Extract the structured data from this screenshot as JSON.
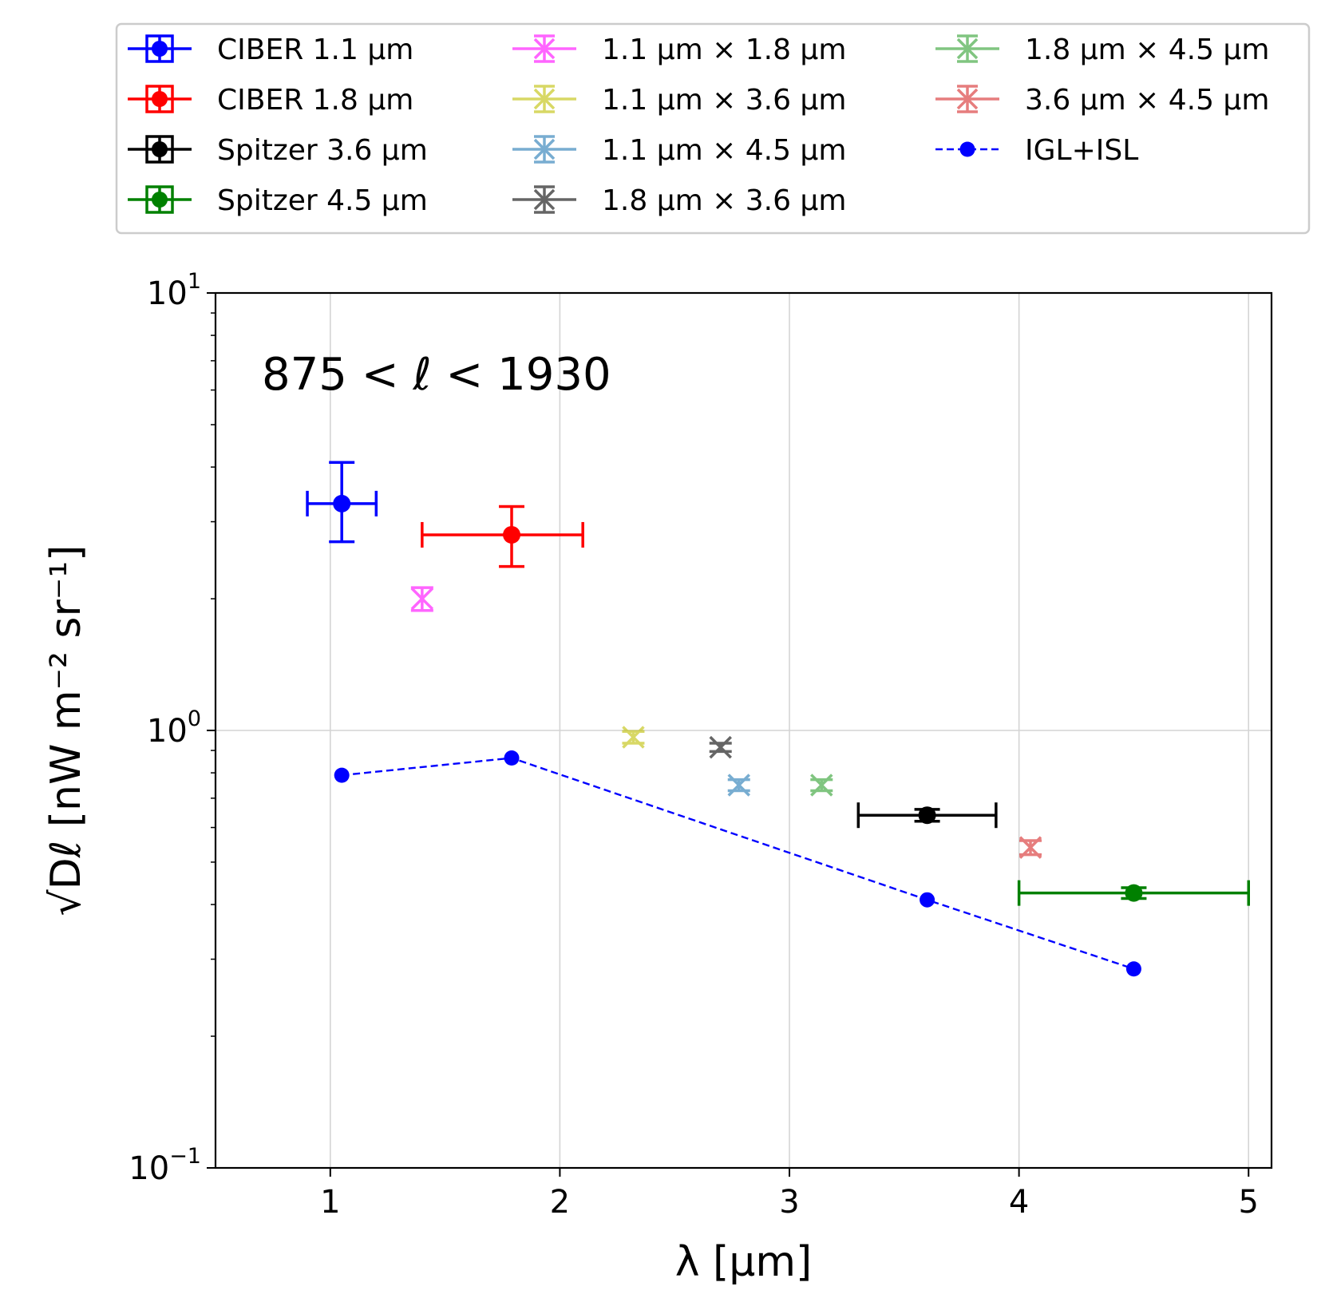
{
  "chart_data": {
    "type": "scatter",
    "annotation": "875 < ℓ < 1930",
    "xlabel": "λ [μm]",
    "ylabel": "√Dℓ [nW m⁻² sr⁻¹]",
    "xlim": [
      0.5,
      5.1
    ],
    "ylim": [
      0.1,
      10
    ],
    "yscale": "log",
    "grid": true,
    "legend_position": "top",
    "x_ticks": [
      {
        "value": 1,
        "label": "1"
      },
      {
        "value": 2,
        "label": "2"
      },
      {
        "value": 3,
        "label": "3"
      },
      {
        "value": 4,
        "label": "4"
      },
      {
        "value": 5,
        "label": "5"
      }
    ],
    "y_ticks": [
      {
        "value": 0.1,
        "base": "10",
        "exp": "−1"
      },
      {
        "value": 1,
        "base": "10",
        "exp": "0"
      },
      {
        "value": 10,
        "base": "10",
        "exp": "1"
      }
    ],
    "series": [
      {
        "name": "CIBER 1.1 μm",
        "color": "#0000ff",
        "marker": "o",
        "x": 1.05,
        "y": 3.3,
        "xerr": [
          0.15,
          0.15
        ],
        "yerr": [
          2.7,
          4.1
        ]
      },
      {
        "name": "CIBER 1.8 μm",
        "color": "#ff0000",
        "marker": "o",
        "x": 1.79,
        "y": 2.8,
        "xerr": [
          0.39,
          0.31
        ],
        "yerr": [
          2.37,
          3.25
        ]
      },
      {
        "name": "Spitzer 3.6 μm",
        "color": "#000000",
        "marker": "o",
        "x": 3.6,
        "y": 0.64,
        "xerr": [
          0.3,
          0.3
        ],
        "yerr": [
          0.62,
          0.66
        ]
      },
      {
        "name": "Spitzer 4.5 μm",
        "color": "#008000",
        "marker": "o",
        "x": 4.5,
        "y": 0.425,
        "xerr": [
          0.5,
          0.5
        ],
        "yerr": [
          0.413,
          0.437
        ]
      },
      {
        "name": "1.1 μm × 1.8 μm",
        "color": "#ff00ff",
        "marker": "x",
        "x": 1.4,
        "y": 2.0,
        "yerr": [
          1.88,
          2.12
        ]
      },
      {
        "name": "1.1 μm × 3.6 μm",
        "color": "#bfbf00",
        "marker": "x",
        "x": 2.32,
        "y": 0.965,
        "yerr": [
          0.935,
          0.995
        ]
      },
      {
        "name": "1.1 μm × 4.5 μm",
        "color": "#1f77b4",
        "marker": "x",
        "x": 2.78,
        "y": 0.75,
        "yerr": [
          0.728,
          0.772
        ]
      },
      {
        "name": "1.8 μm × 3.6 μm",
        "color": "#000000",
        "marker": "x",
        "x": 2.7,
        "y": 0.915,
        "yerr": [
          0.895,
          0.935
        ]
      },
      {
        "name": "1.8 μm × 4.5 μm",
        "color": "#2ca02c",
        "marker": "x",
        "x": 3.14,
        "y": 0.75,
        "yerr": [
          0.728,
          0.772
        ]
      },
      {
        "name": "3.6 μm × 4.5 μm",
        "color": "#d62728",
        "marker": "x",
        "x": 4.05,
        "y": 0.54,
        "yerr": [
          0.52,
          0.56
        ]
      },
      {
        "name": "IGL+ISL",
        "color": "#0000ff",
        "marker": "line",
        "x": [
          1.05,
          1.79,
          3.6,
          4.5
        ],
        "y": [
          0.79,
          0.865,
          0.41,
          0.285
        ]
      }
    ]
  }
}
